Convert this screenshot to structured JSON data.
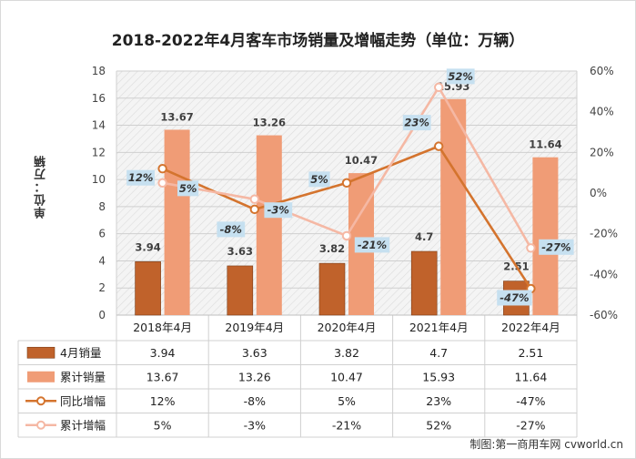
{
  "title": "2018-2022年4月客车市场销量及增幅走势（单位：万辆）",
  "ylabel_left": "单位：万辆",
  "credit": "制图:第一商用车网 cvworld.cn",
  "colors": {
    "monthly_bar": "#c0622b",
    "cumulative_bar": "#f09c76",
    "yoy_line": "#d4742e",
    "cum_growth_line": "#f5b8a4",
    "label_box": "#c6e0f0"
  },
  "chart_data": {
    "type": "bar",
    "categories": [
      "2018年4月",
      "2019年4月",
      "2020年4月",
      "2021年4月",
      "2022年4月"
    ],
    "series": [
      {
        "name": "4月销量",
        "type": "bar",
        "axis": "left",
        "values": [
          3.94,
          3.63,
          3.82,
          4.7,
          2.51
        ],
        "labels": [
          "3.94",
          "3.63",
          "3.82",
          "4.7",
          "2.51"
        ]
      },
      {
        "name": "累计销量",
        "type": "bar",
        "axis": "left",
        "values": [
          13.67,
          13.26,
          10.47,
          15.93,
          11.64
        ],
        "labels": [
          "13.67",
          "13.26",
          "10.47",
          "15.93",
          "11.64"
        ]
      },
      {
        "name": "同比增幅",
        "type": "line",
        "axis": "right",
        "values": [
          12,
          -8,
          5,
          23,
          -47
        ],
        "labels": [
          "12%",
          "-8%",
          "5%",
          "23%",
          "-47%"
        ]
      },
      {
        "name": "累计增幅",
        "type": "line",
        "axis": "right",
        "values": [
          5,
          -3,
          -21,
          52,
          -27
        ],
        "labels": [
          "5%",
          "-3%",
          "-21%",
          "52%",
          "-27%"
        ]
      }
    ],
    "ylim_left": [
      0,
      18
    ],
    "yticks_left": [
      "0",
      "2",
      "4",
      "6",
      "8",
      "10",
      "12",
      "14",
      "16",
      "18"
    ],
    "ylim_right": [
      -60,
      60
    ],
    "yticks_right": [
      "-60%",
      "-40%",
      "-20%",
      "0%",
      "20%",
      "40%",
      "60%"
    ],
    "grid": true,
    "legend": "data-table-below"
  }
}
